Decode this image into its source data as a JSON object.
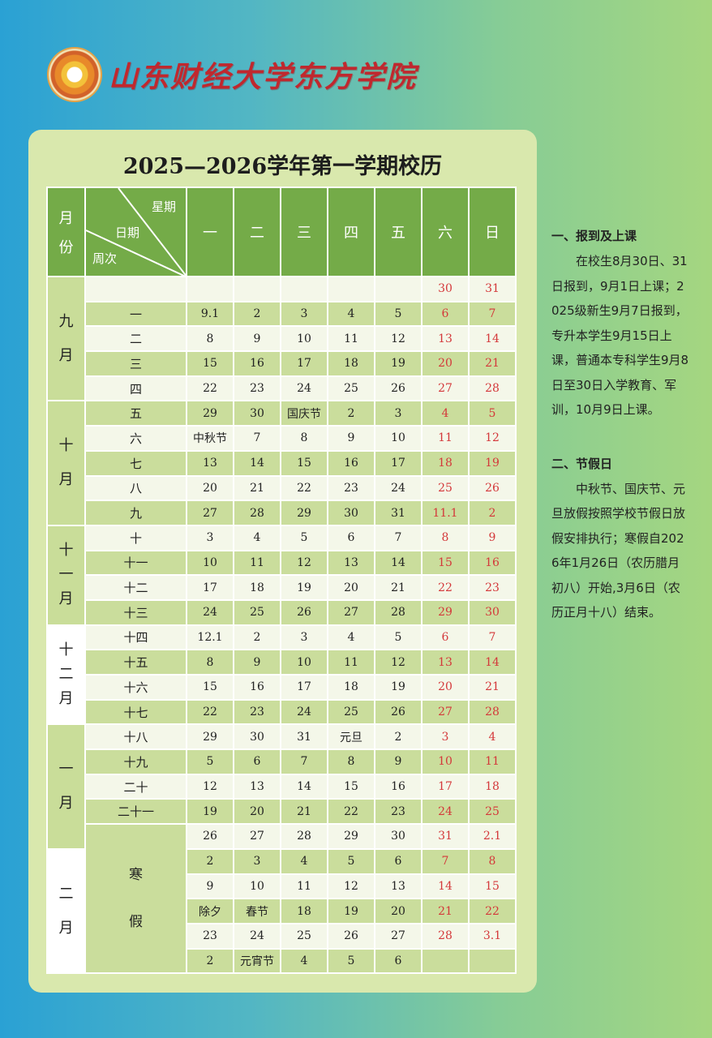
{
  "school": {
    "name": "山东财经大学东方学院"
  },
  "title": "2025—2026学年第一学期校历",
  "header": {
    "month": [
      "月",
      "份"
    ],
    "week_label": "星期",
    "date_label": "日期",
    "weeknum_label": "周次",
    "days": [
      "一",
      "二",
      "三",
      "四",
      "五",
      "六",
      "日"
    ]
  },
  "months": [
    {
      "name": [
        "九",
        "月"
      ],
      "style": "mg",
      "span": 5
    },
    {
      "name": [
        "十",
        "月"
      ],
      "style": "mg",
      "span": 5
    },
    {
      "name": [
        "十",
        "一",
        "月"
      ],
      "style": "mg",
      "span": 4
    },
    {
      "name": [
        "十",
        "二",
        "月"
      ],
      "style": "mw",
      "span": 4
    },
    {
      "name": [
        "一",
        "月"
      ],
      "style": "mg",
      "span": 5
    },
    {
      "name": [
        "二",
        "月"
      ],
      "style": "mw",
      "span": 5
    }
  ],
  "winter_break": [
    "寒",
    "假"
  ],
  "rows": [
    {
      "week": "",
      "d": [
        "",
        "",
        "",
        "",
        "",
        "30",
        "31"
      ]
    },
    {
      "week": "一",
      "d": [
        "9.1",
        "2",
        "3",
        "4",
        "5",
        "6",
        "7"
      ]
    },
    {
      "week": "二",
      "d": [
        "8",
        "9",
        "10",
        "11",
        "12",
        "13",
        "14"
      ]
    },
    {
      "week": "三",
      "d": [
        "15",
        "16",
        "17",
        "18",
        "19",
        "20",
        "21"
      ]
    },
    {
      "week": "四",
      "d": [
        "22",
        "23",
        "24",
        "25",
        "26",
        "27",
        "28"
      ]
    },
    {
      "week": "五",
      "d": [
        "29",
        "30",
        "国庆节",
        "2",
        "3",
        "4",
        "5"
      ]
    },
    {
      "week": "六",
      "d": [
        "中秋节",
        "7",
        "8",
        "9",
        "10",
        "11",
        "12"
      ]
    },
    {
      "week": "七",
      "d": [
        "13",
        "14",
        "15",
        "16",
        "17",
        "18",
        "19"
      ]
    },
    {
      "week": "八",
      "d": [
        "20",
        "21",
        "22",
        "23",
        "24",
        "25",
        "26"
      ]
    },
    {
      "week": "九",
      "d": [
        "27",
        "28",
        "29",
        "30",
        "31",
        "11.1",
        "2"
      ]
    },
    {
      "week": "十",
      "d": [
        "3",
        "4",
        "5",
        "6",
        "7",
        "8",
        "9"
      ]
    },
    {
      "week": "十一",
      "d": [
        "10",
        "11",
        "12",
        "13",
        "14",
        "15",
        "16"
      ]
    },
    {
      "week": "十二",
      "d": [
        "17",
        "18",
        "19",
        "20",
        "21",
        "22",
        "23"
      ]
    },
    {
      "week": "十三",
      "d": [
        "24",
        "25",
        "26",
        "27",
        "28",
        "29",
        "30"
      ]
    },
    {
      "week": "十四",
      "d": [
        "12.1",
        "2",
        "3",
        "4",
        "5",
        "6",
        "7"
      ]
    },
    {
      "week": "十五",
      "d": [
        "8",
        "9",
        "10",
        "11",
        "12",
        "13",
        "14"
      ]
    },
    {
      "week": "十六",
      "d": [
        "15",
        "16",
        "17",
        "18",
        "19",
        "20",
        "21"
      ]
    },
    {
      "week": "十七",
      "d": [
        "22",
        "23",
        "24",
        "25",
        "26",
        "27",
        "28"
      ]
    },
    {
      "week": "十八",
      "d": [
        "29",
        "30",
        "31",
        "元旦",
        "2",
        "3",
        "4"
      ]
    },
    {
      "week": "十九",
      "d": [
        "5",
        "6",
        "7",
        "8",
        "9",
        "10",
        "11"
      ]
    },
    {
      "week": "二十",
      "d": [
        "12",
        "13",
        "14",
        "15",
        "16",
        "17",
        "18"
      ]
    },
    {
      "week": "二十一",
      "d": [
        "19",
        "20",
        "21",
        "22",
        "23",
        "24",
        "25"
      ]
    },
    {
      "week": "",
      "d": [
        "26",
        "27",
        "28",
        "29",
        "30",
        "31",
        "2.1"
      ]
    },
    {
      "week": "",
      "d": [
        "2",
        "3",
        "4",
        "5",
        "6",
        "7",
        "8"
      ]
    },
    {
      "week": "",
      "d": [
        "9",
        "10",
        "11",
        "12",
        "13",
        "14",
        "15"
      ]
    },
    {
      "week": "",
      "d": [
        "除夕",
        "春节",
        "18",
        "19",
        "20",
        "21",
        "22"
      ]
    },
    {
      "week": "",
      "d": [
        "23",
        "24",
        "25",
        "26",
        "27",
        "28",
        "3.1"
      ]
    },
    {
      "week": "",
      "d": [
        "2",
        "元宵节",
        "4",
        "5",
        "6",
        "",
        ""
      ]
    }
  ],
  "notes": {
    "s1_title": "一、报到及上课",
    "s1_body": "在校生8月30日、31日报到，9月1日上课；2025级新生9月7日报到，专升本学生9月15日上课，普通本专科学生9月8日至30日入学教育、军训，10月9日上课。",
    "s2_title": "二、节假日",
    "s2_body": "中秋节、国庆节、元旦放假按照学校节假日放假安排执行；寒假自2026年1月26日（农历腊月初八）开始,3月6日（农历正月十八）结束。"
  },
  "colors": {
    "header_green": "#74ab48",
    "weekend_red": "#d4383a",
    "card": "#d9e8ad",
    "school_red": "#c0282e"
  }
}
